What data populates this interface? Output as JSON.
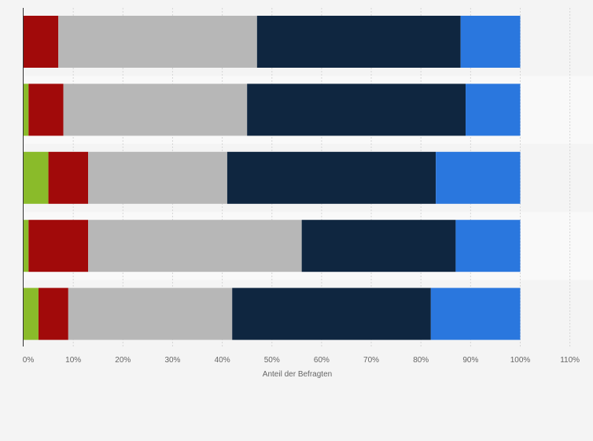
{
  "chart_data": {
    "type": "bar",
    "orientation": "horizontal",
    "stacked": true,
    "title": "",
    "xlabel": "Anteil der Befragten",
    "ylabel": "",
    "xlim": [
      0,
      110
    ],
    "x_ticks": [
      "0%",
      "10%",
      "20%",
      "30%",
      "40%",
      "50%",
      "60%",
      "70%",
      "80%",
      "90%",
      "100%",
      "110%"
    ],
    "grid": true,
    "legend": "none",
    "categories": [
      "",
      "",
      "",
      "",
      ""
    ],
    "series": [
      {
        "color": "#8abb2a",
        "values": [
          0,
          1,
          5,
          1,
          3
        ]
      },
      {
        "color": "#a10a0a",
        "values": [
          7,
          7,
          8,
          12,
          6
        ]
      },
      {
        "color": "#b7b7b7",
        "values": [
          40,
          37,
          28,
          43,
          33
        ]
      },
      {
        "color": "#0f2640",
        "values": [
          41,
          44,
          42,
          31,
          40
        ]
      },
      {
        "color": "#2a77de",
        "values": [
          12,
          11,
          17,
          13,
          18
        ]
      }
    ]
  }
}
